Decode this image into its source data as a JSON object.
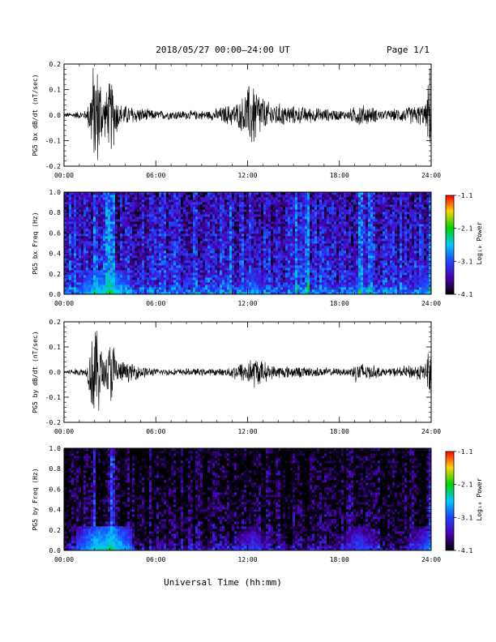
{
  "header": {
    "title": "2018/05/27  00:00–24:00 UT",
    "page": "Page 1/1"
  },
  "xlabel": "Universal Time (hh:mm)",
  "colors": {
    "axis": "#000000",
    "trace": "#000000",
    "background": "#ffffff"
  },
  "chart_data": [
    {
      "type": "line",
      "ylabel": "PG5 bx dB/dt (nT/sec)",
      "xlim": [
        0,
        24
      ],
      "ylim": [
        -0.2,
        0.2
      ],
      "xticks": [
        "00:00",
        "06:00",
        "12:00",
        "18:00",
        "24:00"
      ],
      "yticks": [
        "-0.2",
        "-0.1",
        "0.0",
        "0.1",
        "0.2"
      ],
      "envelope": [
        {
          "t": 0.0,
          "amp": 0.01
        },
        {
          "t": 1.5,
          "amp": 0.02
        },
        {
          "t": 1.9,
          "amp": 0.22
        },
        {
          "t": 2.3,
          "amp": 0.22
        },
        {
          "t": 2.6,
          "amp": 0.08
        },
        {
          "t": 3.1,
          "amp": 0.17
        },
        {
          "t": 3.6,
          "amp": 0.05
        },
        {
          "t": 6.0,
          "amp": 0.02
        },
        {
          "t": 9.5,
          "amp": 0.02
        },
        {
          "t": 11.5,
          "amp": 0.06
        },
        {
          "t": 12.3,
          "amp": 0.16
        },
        {
          "t": 13.2,
          "amp": 0.06
        },
        {
          "t": 15.0,
          "amp": 0.04
        },
        {
          "t": 18.5,
          "amp": 0.02
        },
        {
          "t": 19.3,
          "amp": 0.05
        },
        {
          "t": 21.0,
          "amp": 0.02
        },
        {
          "t": 23.7,
          "amp": 0.05
        },
        {
          "t": 23.9,
          "amp": 0.22
        },
        {
          "t": 24.0,
          "amp": 0.05
        }
      ]
    },
    {
      "type": "heatmap",
      "ylabel": "PG5 bx Freq (Hz)",
      "xlim": [
        0,
        24
      ],
      "ylim": [
        0,
        1.0
      ],
      "xticks": [
        "00:00",
        "06:00",
        "12:00",
        "18:00",
        "24:00"
      ],
      "yticks": [
        "0.0",
        "0.2",
        "0.4",
        "0.6",
        "0.8",
        "1.0"
      ],
      "colorbar": {
        "label": "Log₁₀ Power",
        "range": [
          -4.1,
          -1.1
        ],
        "ticks": [
          "-1.1",
          "-2.1",
          "-3.1",
          "-4.1"
        ]
      },
      "base_level": -3.3,
      "bright_times": [
        2.0,
        2.9,
        3.2,
        10.9,
        15.2,
        15.9,
        19.4,
        20.0,
        23.9
      ],
      "low_freq_hotspots": [
        {
          "t": 2.2,
          "level": -2.5
        },
        {
          "t": 3.1,
          "level": -2.4
        },
        {
          "t": 12.4,
          "level": -2.8
        },
        {
          "t": 19.3,
          "level": -2.9
        },
        {
          "t": 23.8,
          "level": -2.8
        }
      ]
    },
    {
      "type": "line",
      "ylabel": "PG5 by dB/dt (nT/sec)",
      "xlim": [
        0,
        24
      ],
      "ylim": [
        -0.2,
        0.2
      ],
      "xticks": [
        "00:00",
        "06:00",
        "12:00",
        "18:00",
        "24:00"
      ],
      "yticks": [
        "-0.2",
        "-0.1",
        "0.0",
        "0.1",
        "0.2"
      ],
      "envelope": [
        {
          "t": 0.0,
          "amp": 0.01
        },
        {
          "t": 1.5,
          "amp": 0.02
        },
        {
          "t": 1.9,
          "amp": 0.22
        },
        {
          "t": 2.3,
          "amp": 0.18
        },
        {
          "t": 2.6,
          "amp": 0.06
        },
        {
          "t": 3.1,
          "amp": 0.16
        },
        {
          "t": 3.6,
          "amp": 0.05
        },
        {
          "t": 6.0,
          "amp": 0.015
        },
        {
          "t": 10.5,
          "amp": 0.015
        },
        {
          "t": 11.8,
          "amp": 0.05
        },
        {
          "t": 12.5,
          "amp": 0.07
        },
        {
          "t": 13.5,
          "amp": 0.03
        },
        {
          "t": 18.5,
          "amp": 0.015
        },
        {
          "t": 19.2,
          "amp": 0.05
        },
        {
          "t": 21.0,
          "amp": 0.015
        },
        {
          "t": 23.7,
          "amp": 0.04
        },
        {
          "t": 23.9,
          "amp": 0.22
        },
        {
          "t": 24.0,
          "amp": 0.05
        }
      ]
    },
    {
      "type": "heatmap",
      "ylabel": "PG5 by Freq (Hz)",
      "xlim": [
        0,
        24
      ],
      "ylim": [
        0,
        1.0
      ],
      "xticks": [
        "00:00",
        "06:00",
        "12:00",
        "18:00",
        "24:00"
      ],
      "yticks": [
        "0.0",
        "0.2",
        "0.4",
        "0.6",
        "0.8",
        "1.0"
      ],
      "colorbar": {
        "label": "Log₁₀ Power",
        "range": [
          -4.1,
          -1.1
        ],
        "ticks": [
          "-1.1",
          "-2.1",
          "-3.1",
          "-4.1"
        ]
      },
      "base_level": -3.9,
      "bright_times": [
        2.0,
        3.0,
        3.2,
        23.9
      ],
      "low_freq_hotspots": [
        {
          "t": 2.2,
          "level": -2.4
        },
        {
          "t": 3.1,
          "level": -2.3
        },
        {
          "t": 12.3,
          "level": -3.1
        },
        {
          "t": 19.3,
          "level": -3.0
        },
        {
          "t": 23.8,
          "level": -2.9
        }
      ]
    }
  ]
}
